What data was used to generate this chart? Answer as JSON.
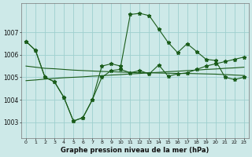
{
  "title": "Graphe pression niveau de la mer (hPa)",
  "background_color": "#cde9e8",
  "grid_color": "#9ecfce",
  "line_color": "#1a5c1a",
  "xlim": [
    -0.5,
    23.5
  ],
  "ylim": [
    1002.3,
    1008.3
  ],
  "yticks": [
    1003,
    1004,
    1005,
    1006,
    1007
  ],
  "xticks": [
    0,
    1,
    2,
    3,
    4,
    5,
    6,
    7,
    8,
    9,
    10,
    11,
    12,
    13,
    14,
    15,
    16,
    17,
    18,
    19,
    20,
    21,
    22,
    23
  ],
  "xtick_labels": [
    "0",
    "1",
    "2",
    "3",
    "4",
    "5",
    "6",
    "7",
    "8",
    "9",
    "10",
    "11",
    "12",
    "13",
    "14",
    "15",
    "16",
    "17",
    "18",
    "19",
    "20",
    "21",
    "22",
    "23"
  ],
  "y_spiky": [
    1006.6,
    1006.2,
    1005.0,
    1004.8,
    1004.1,
    1003.05,
    1003.2,
    1004.0,
    1005.5,
    1005.6,
    1005.5,
    1007.8,
    1007.85,
    1007.75,
    1007.15,
    1006.55,
    1006.1,
    1006.5,
    1006.15,
    1005.8,
    1005.75,
    1005.0,
    1004.9,
    1005.0
  ],
  "y_dip": [
    1006.6,
    1006.2,
    1005.0,
    1004.8,
    1004.1,
    1003.05,
    1003.2,
    1004.0,
    1005.0,
    1005.3,
    1005.35,
    1005.2,
    1005.3,
    1005.15,
    1005.55,
    1005.05,
    1005.15,
    1005.2,
    1005.35,
    1005.5,
    1005.6,
    1005.7,
    1005.8,
    1005.9
  ],
  "y_trend1": [
    1005.5,
    1005.45,
    1005.4,
    1005.38,
    1005.35,
    1005.32,
    1005.3,
    1005.28,
    1005.26,
    1005.25,
    1005.23,
    1005.22,
    1005.2,
    1005.2,
    1005.19,
    1005.18,
    1005.17,
    1005.17,
    1005.16,
    1005.15,
    1005.14,
    1005.12,
    1005.1,
    1005.08
  ],
  "y_trend2": [
    1004.85,
    1004.88,
    1004.92,
    1004.95,
    1004.98,
    1005.0,
    1005.02,
    1005.05,
    1005.07,
    1005.1,
    1005.12,
    1005.15,
    1005.17,
    1005.2,
    1005.22,
    1005.25,
    1005.27,
    1005.3,
    1005.32,
    1005.35,
    1005.37,
    1005.4,
    1005.42,
    1005.45
  ]
}
